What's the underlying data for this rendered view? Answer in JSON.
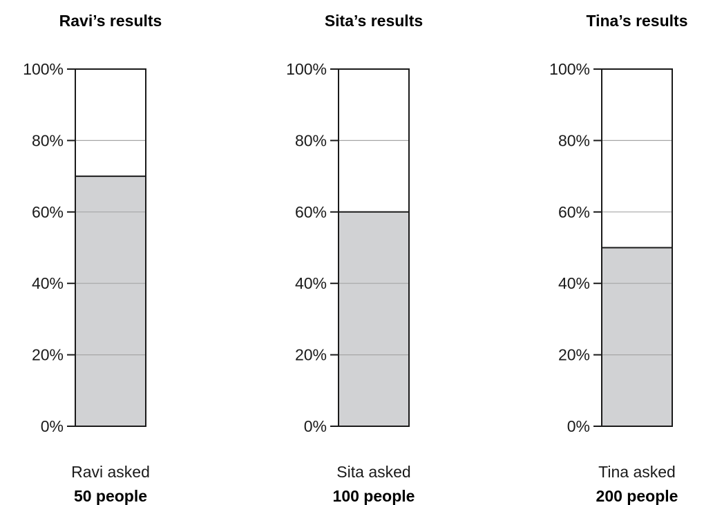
{
  "chart_data": [
    {
      "type": "bar",
      "title": "Ravi’s results",
      "value": 70,
      "ylim": [
        0,
        100
      ],
      "ticks": [
        "0%",
        "20%",
        "40%",
        "60%",
        "80%",
        "100%"
      ],
      "caption_line1": "Ravi asked",
      "caption_line2": "50 people"
    },
    {
      "type": "bar",
      "title": "Sita’s results",
      "value": 60,
      "ylim": [
        0,
        100
      ],
      "ticks": [
        "0%",
        "20%",
        "40%",
        "60%",
        "80%",
        "100%"
      ],
      "caption_line1": "Sita asked",
      "caption_line2": "100 people"
    },
    {
      "type": "bar",
      "title": "Tina’s results",
      "value": 50,
      "ylim": [
        0,
        100
      ],
      "ticks": [
        "0%",
        "20%",
        "40%",
        "60%",
        "80%",
        "100%"
      ],
      "caption_line1": "Tina asked",
      "caption_line2": "200 people"
    }
  ],
  "colors": {
    "bar_fill": "#d1d2d4",
    "outline": "#1a1a1a",
    "gridline": "#a6a6a6"
  }
}
